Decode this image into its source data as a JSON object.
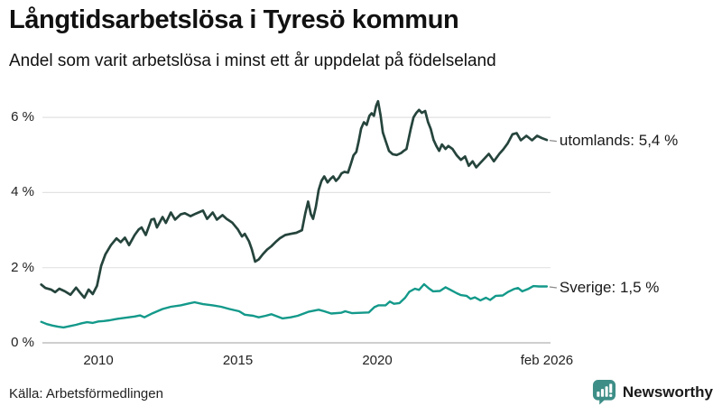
{
  "header": {
    "title": "Långtidsarbetslösa i Tyresö kommun",
    "subtitle": "Andel som varit arbetslösa i minst ett år uppdelat på födelseland"
  },
  "chart_data": {
    "type": "line",
    "title": "Långtidsarbetslösa i Tyresö kommun",
    "subtitle": "Andel som varit arbetslösa i minst ett år uppdelat på födelseland",
    "unit": "%",
    "grid": true,
    "x_axis": {
      "ticks": [
        {
          "year": 2010,
          "label": "2010"
        },
        {
          "year": 2015,
          "label": "2015"
        },
        {
          "year": 2020,
          "label": "2020"
        },
        {
          "year": 2026.083,
          "label": "feb 2026"
        }
      ],
      "range_years": [
        2007.93,
        2026.083
      ]
    },
    "y_axis": {
      "ticks": [
        {
          "value": 6,
          "label": "6 %"
        },
        {
          "value": 4,
          "label": "4 %"
        },
        {
          "value": 2,
          "label": "2 %"
        },
        {
          "value": 0,
          "label": "0 %"
        }
      ],
      "range": [
        0,
        6.6
      ]
    },
    "gridline_color": "#e2e2e2",
    "baseline_color": "#bfbfbf",
    "series": [
      {
        "name": "utomlands",
        "label": "utomlands: 5,4 %",
        "last_value_label": "5,4 %",
        "color": "#25443c",
        "stroke_width": 2.7,
        "points": [
          [
            2007.95,
            1.55
          ],
          [
            2008.1,
            1.46
          ],
          [
            2008.3,
            1.42
          ],
          [
            2008.45,
            1.35
          ],
          [
            2008.6,
            1.44
          ],
          [
            2008.8,
            1.37
          ],
          [
            2009.0,
            1.28
          ],
          [
            2009.2,
            1.47
          ],
          [
            2009.35,
            1.33
          ],
          [
            2009.5,
            1.2
          ],
          [
            2009.65,
            1.42
          ],
          [
            2009.8,
            1.3
          ],
          [
            2009.95,
            1.52
          ],
          [
            2010.1,
            2.05
          ],
          [
            2010.25,
            2.35
          ],
          [
            2010.45,
            2.6
          ],
          [
            2010.65,
            2.78
          ],
          [
            2010.8,
            2.68
          ],
          [
            2010.95,
            2.8
          ],
          [
            2011.1,
            2.6
          ],
          [
            2011.3,
            2.87
          ],
          [
            2011.45,
            3.02
          ],
          [
            2011.55,
            3.07
          ],
          [
            2011.7,
            2.87
          ],
          [
            2011.9,
            3.28
          ],
          [
            2012.0,
            3.3
          ],
          [
            2012.1,
            3.07
          ],
          [
            2012.3,
            3.35
          ],
          [
            2012.42,
            3.19
          ],
          [
            2012.6,
            3.47
          ],
          [
            2012.75,
            3.28
          ],
          [
            2012.95,
            3.42
          ],
          [
            2013.1,
            3.45
          ],
          [
            2013.3,
            3.37
          ],
          [
            2013.5,
            3.44
          ],
          [
            2013.75,
            3.52
          ],
          [
            2013.9,
            3.3
          ],
          [
            2014.1,
            3.47
          ],
          [
            2014.25,
            3.28
          ],
          [
            2014.45,
            3.4
          ],
          [
            2014.6,
            3.3
          ],
          [
            2014.8,
            3.2
          ],
          [
            2015.0,
            3.02
          ],
          [
            2015.15,
            2.83
          ],
          [
            2015.25,
            2.9
          ],
          [
            2015.4,
            2.7
          ],
          [
            2015.5,
            2.5
          ],
          [
            2015.62,
            2.16
          ],
          [
            2015.75,
            2.22
          ],
          [
            2015.9,
            2.36
          ],
          [
            2016.05,
            2.48
          ],
          [
            2016.2,
            2.57
          ],
          [
            2016.35,
            2.68
          ],
          [
            2016.5,
            2.78
          ],
          [
            2016.7,
            2.87
          ],
          [
            2016.9,
            2.9
          ],
          [
            2017.1,
            2.93
          ],
          [
            2017.3,
            3.0
          ],
          [
            2017.42,
            3.45
          ],
          [
            2017.52,
            3.76
          ],
          [
            2017.62,
            3.42
          ],
          [
            2017.7,
            3.3
          ],
          [
            2017.8,
            3.62
          ],
          [
            2017.9,
            4.07
          ],
          [
            2018.0,
            4.31
          ],
          [
            2018.1,
            4.43
          ],
          [
            2018.22,
            4.27
          ],
          [
            2018.32,
            4.36
          ],
          [
            2018.42,
            4.43
          ],
          [
            2018.52,
            4.31
          ],
          [
            2018.62,
            4.39
          ],
          [
            2018.72,
            4.51
          ],
          [
            2018.82,
            4.55
          ],
          [
            2018.95,
            4.53
          ],
          [
            2019.05,
            4.75
          ],
          [
            2019.15,
            4.99
          ],
          [
            2019.25,
            5.08
          ],
          [
            2019.33,
            5.35
          ],
          [
            2019.42,
            5.7
          ],
          [
            2019.52,
            5.87
          ],
          [
            2019.62,
            5.8
          ],
          [
            2019.72,
            6.04
          ],
          [
            2019.8,
            6.11
          ],
          [
            2019.88,
            6.04
          ],
          [
            2019.96,
            6.31
          ],
          [
            2020.03,
            6.43
          ],
          [
            2020.12,
            6.05
          ],
          [
            2020.2,
            5.6
          ],
          [
            2020.32,
            5.33
          ],
          [
            2020.42,
            5.11
          ],
          [
            2020.55,
            5.02
          ],
          [
            2020.7,
            5.0
          ],
          [
            2020.85,
            5.05
          ],
          [
            2020.95,
            5.11
          ],
          [
            2021.05,
            5.16
          ],
          [
            2021.2,
            5.69
          ],
          [
            2021.3,
            6.0
          ],
          [
            2021.4,
            6.12
          ],
          [
            2021.5,
            6.2
          ],
          [
            2021.6,
            6.12
          ],
          [
            2021.72,
            6.17
          ],
          [
            2021.82,
            5.88
          ],
          [
            2021.92,
            5.69
          ],
          [
            2022.02,
            5.4
          ],
          [
            2022.12,
            5.24
          ],
          [
            2022.22,
            5.11
          ],
          [
            2022.32,
            5.28
          ],
          [
            2022.45,
            5.16
          ],
          [
            2022.55,
            5.24
          ],
          [
            2022.7,
            5.16
          ],
          [
            2022.85,
            4.99
          ],
          [
            2023.0,
            4.87
          ],
          [
            2023.15,
            4.96
          ],
          [
            2023.28,
            4.71
          ],
          [
            2023.42,
            4.83
          ],
          [
            2023.55,
            4.67
          ],
          [
            2023.7,
            4.79
          ],
          [
            2023.85,
            4.91
          ],
          [
            2024.0,
            5.03
          ],
          [
            2024.18,
            4.83
          ],
          [
            2024.38,
            5.03
          ],
          [
            2024.52,
            5.15
          ],
          [
            2024.68,
            5.31
          ],
          [
            2024.85,
            5.55
          ],
          [
            2025.0,
            5.58
          ],
          [
            2025.15,
            5.39
          ],
          [
            2025.35,
            5.51
          ],
          [
            2025.55,
            5.39
          ],
          [
            2025.73,
            5.51
          ],
          [
            2025.9,
            5.45
          ],
          [
            2026.08,
            5.4
          ]
        ]
      },
      {
        "name": "Sverige",
        "label": "Sverige: 1,5 %",
        "last_value_label": "1,5 %",
        "color": "#13998a",
        "stroke_width": 2.4,
        "points": [
          [
            2007.95,
            0.56
          ],
          [
            2008.15,
            0.5
          ],
          [
            2008.35,
            0.46
          ],
          [
            2008.55,
            0.43
          ],
          [
            2008.75,
            0.41
          ],
          [
            2009.0,
            0.45
          ],
          [
            2009.2,
            0.48
          ],
          [
            2009.4,
            0.52
          ],
          [
            2009.6,
            0.55
          ],
          [
            2009.8,
            0.53
          ],
          [
            2010.0,
            0.57
          ],
          [
            2010.2,
            0.58
          ],
          [
            2010.4,
            0.6
          ],
          [
            2010.7,
            0.64
          ],
          [
            2011.0,
            0.67
          ],
          [
            2011.3,
            0.7
          ],
          [
            2011.5,
            0.73
          ],
          [
            2011.65,
            0.68
          ],
          [
            2011.95,
            0.79
          ],
          [
            2012.3,
            0.9
          ],
          [
            2012.6,
            0.96
          ],
          [
            2012.95,
            1.0
          ],
          [
            2013.25,
            1.05
          ],
          [
            2013.45,
            1.08
          ],
          [
            2013.75,
            1.03
          ],
          [
            2014.1,
            1.0
          ],
          [
            2014.4,
            0.96
          ],
          [
            2014.7,
            0.9
          ],
          [
            2015.05,
            0.84
          ],
          [
            2015.25,
            0.75
          ],
          [
            2015.55,
            0.72
          ],
          [
            2015.75,
            0.68
          ],
          [
            2016.0,
            0.72
          ],
          [
            2016.2,
            0.76
          ],
          [
            2016.6,
            0.65
          ],
          [
            2016.9,
            0.68
          ],
          [
            2017.15,
            0.72
          ],
          [
            2017.55,
            0.83
          ],
          [
            2017.9,
            0.88
          ],
          [
            2018.1,
            0.84
          ],
          [
            2018.35,
            0.78
          ],
          [
            2018.7,
            0.8
          ],
          [
            2018.85,
            0.84
          ],
          [
            2019.1,
            0.79
          ],
          [
            2019.4,
            0.8
          ],
          [
            2019.7,
            0.81
          ],
          [
            2019.9,
            0.95
          ],
          [
            2020.05,
            1.0
          ],
          [
            2020.3,
            1.0
          ],
          [
            2020.45,
            1.1
          ],
          [
            2020.6,
            1.04
          ],
          [
            2020.8,
            1.06
          ],
          [
            2021.0,
            1.2
          ],
          [
            2021.15,
            1.36
          ],
          [
            2021.35,
            1.44
          ],
          [
            2021.5,
            1.41
          ],
          [
            2021.68,
            1.56
          ],
          [
            2021.85,
            1.45
          ],
          [
            2022.0,
            1.37
          ],
          [
            2022.25,
            1.38
          ],
          [
            2022.45,
            1.48
          ],
          [
            2022.65,
            1.4
          ],
          [
            2022.85,
            1.32
          ],
          [
            2023.0,
            1.27
          ],
          [
            2023.2,
            1.25
          ],
          [
            2023.35,
            1.17
          ],
          [
            2023.5,
            1.21
          ],
          [
            2023.7,
            1.13
          ],
          [
            2023.9,
            1.2
          ],
          [
            2024.05,
            1.14
          ],
          [
            2024.25,
            1.25
          ],
          [
            2024.5,
            1.26
          ],
          [
            2024.7,
            1.36
          ],
          [
            2024.9,
            1.43
          ],
          [
            2025.05,
            1.46
          ],
          [
            2025.2,
            1.37
          ],
          [
            2025.4,
            1.43
          ],
          [
            2025.6,
            1.51
          ],
          [
            2025.8,
            1.5
          ],
          [
            2026.08,
            1.5
          ]
        ]
      }
    ]
  },
  "footer": {
    "source": "Källa: Arbetsförmedlingen",
    "brand": "Newsworthy",
    "brand_color": "#3d8e87"
  }
}
